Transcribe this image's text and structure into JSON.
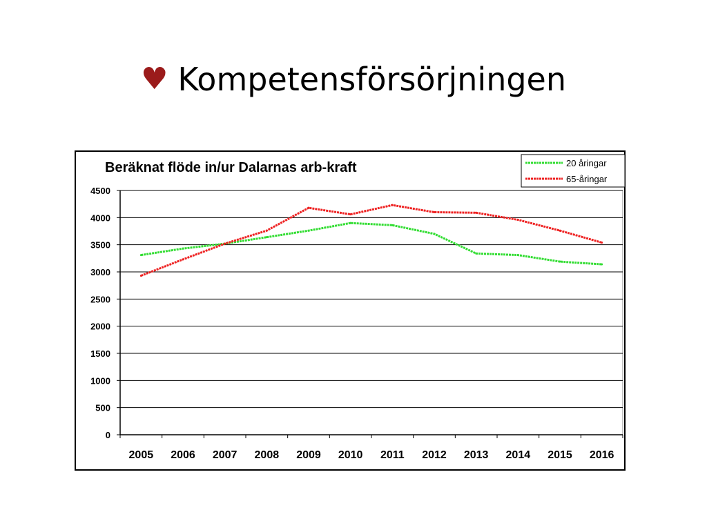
{
  "slide": {
    "title": "Kompetensförsörjningen",
    "bullet_icon": "heart-icon",
    "bullet_color": "#9b1b1b"
  },
  "chart_data": {
    "type": "line",
    "title": "Beräknat flöde in/ur Dalarnas arb-kraft",
    "xlabel": "",
    "ylabel": "",
    "categories": [
      "2005",
      "2006",
      "2007",
      "2008",
      "2009",
      "2010",
      "2011",
      "2012",
      "2013",
      "2014",
      "2015",
      "2016"
    ],
    "ylim": [
      0,
      4500
    ],
    "yticks": [
      0,
      500,
      1000,
      1500,
      2000,
      2500,
      3000,
      3500,
      4000,
      4500
    ],
    "grid": true,
    "legend_position": "top-right",
    "series": [
      {
        "name": "20 åringar",
        "color": "#33dd33",
        "values": [
          3310,
          3430,
          3520,
          3640,
          3760,
          3900,
          3860,
          3700,
          3340,
          3310,
          3190,
          3140
        ]
      },
      {
        "name": "65-åringar",
        "color": "#ee2222",
        "values": [
          2930,
          3230,
          3520,
          3760,
          4180,
          4060,
          4230,
          4100,
          4090,
          3960,
          3760,
          3540
        ]
      }
    ]
  }
}
